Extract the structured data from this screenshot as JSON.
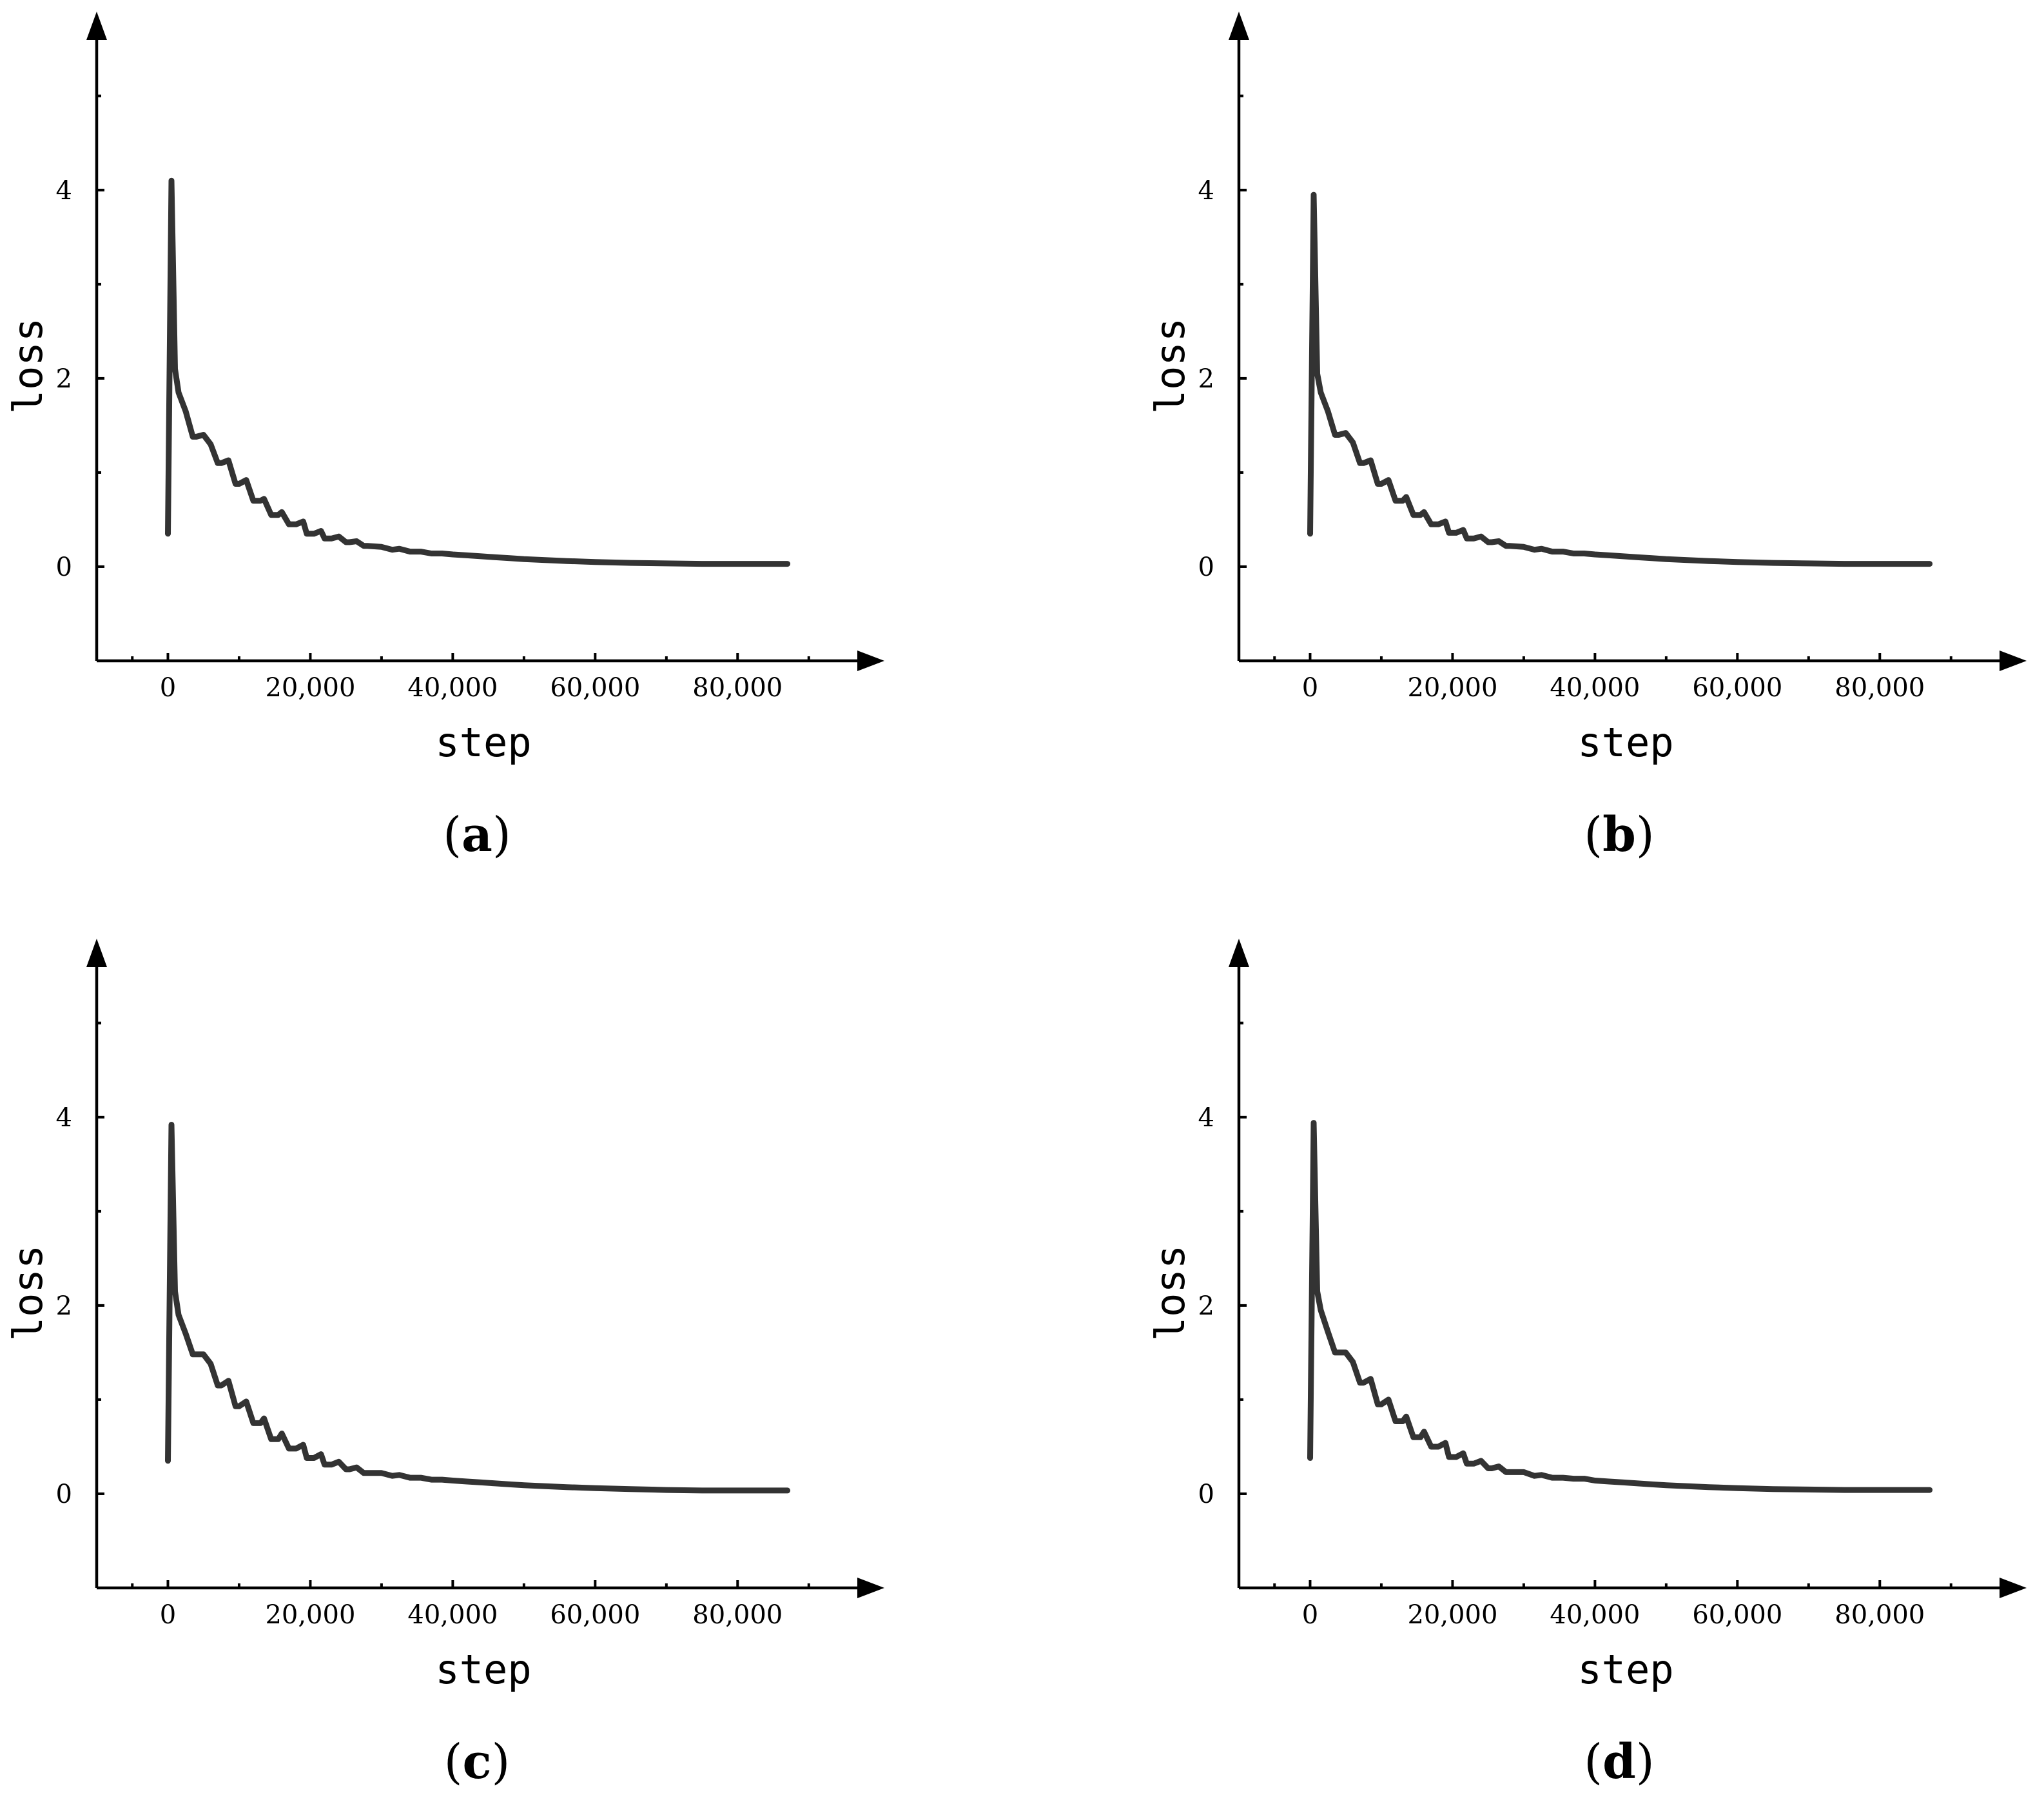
{
  "chart_data": [
    {
      "panel_label": "a",
      "type": "line",
      "xlabel": "step",
      "ylabel": "loss",
      "x_ticks": [
        0,
        20000,
        40000,
        60000,
        80000
      ],
      "x_tick_labels": [
        "0",
        "20,000",
        "40,000",
        "60,000",
        "80,000"
      ],
      "y_ticks": [
        0,
        2,
        4
      ],
      "y_tick_labels": [
        "0",
        "2",
        "4"
      ],
      "xlim": [
        -10000,
        95000
      ],
      "ylim": [
        -1,
        5.3
      ],
      "grid": false,
      "series": [
        {
          "x": [
            0,
            500,
            1000,
            1500,
            2500,
            3500,
            4000,
            5000,
            6000,
            7000,
            7500,
            8500,
            9500,
            10000,
            11000,
            12000,
            13000,
            13500,
            14500,
            15500,
            16000,
            17000,
            18000,
            19000,
            19500,
            20500,
            21500,
            22000,
            23000,
            24000,
            25000,
            25500,
            26500,
            27500,
            28000,
            30000,
            31500,
            32500,
            34000,
            35500,
            37000,
            38500,
            40000,
            42000,
            44000,
            46000,
            48000,
            50000,
            53000,
            56000,
            60000,
            65000,
            70000,
            75000,
            80000,
            87000
          ],
          "y": [
            0.35,
            4.1,
            2.1,
            1.85,
            1.65,
            1.38,
            1.38,
            1.4,
            1.3,
            1.1,
            1.1,
            1.13,
            0.88,
            0.88,
            0.92,
            0.7,
            0.7,
            0.72,
            0.55,
            0.55,
            0.58,
            0.45,
            0.45,
            0.48,
            0.35,
            0.35,
            0.38,
            0.3,
            0.3,
            0.32,
            0.26,
            0.26,
            0.27,
            0.22,
            0.22,
            0.21,
            0.18,
            0.19,
            0.16,
            0.16,
            0.14,
            0.14,
            0.13,
            0.12,
            0.11,
            0.1,
            0.09,
            0.08,
            0.07,
            0.06,
            0.05,
            0.04,
            0.035,
            0.03,
            0.03,
            0.03
          ]
        }
      ]
    },
    {
      "panel_label": "b",
      "type": "line",
      "xlabel": "step",
      "ylabel": "loss",
      "x_ticks": [
        0,
        20000,
        40000,
        60000,
        80000
      ],
      "x_tick_labels": [
        "0",
        "20,000",
        "40,000",
        "60,000",
        "80,000"
      ],
      "y_ticks": [
        0,
        2,
        4
      ],
      "y_tick_labels": [
        "0",
        "2",
        "4"
      ],
      "xlim": [
        -10000,
        95000
      ],
      "ylim": [
        -1,
        5.3
      ],
      "grid": false,
      "series": [
        {
          "x": [
            0,
            500,
            1000,
            1500,
            2500,
            3500,
            4000,
            5000,
            6000,
            7000,
            7500,
            8500,
            9500,
            10000,
            11000,
            12000,
            13000,
            13500,
            14500,
            15500,
            16000,
            17000,
            18000,
            19000,
            19500,
            20500,
            21500,
            22000,
            23000,
            24000,
            25000,
            25500,
            26500,
            27500,
            28000,
            30000,
            31500,
            32500,
            34000,
            35500,
            37000,
            38500,
            40000,
            42000,
            44000,
            46000,
            48000,
            50000,
            53000,
            56000,
            60000,
            65000,
            70000,
            75000,
            80000,
            87000
          ],
          "y": [
            0.35,
            3.95,
            2.05,
            1.85,
            1.65,
            1.4,
            1.4,
            1.42,
            1.32,
            1.1,
            1.1,
            1.13,
            0.88,
            0.88,
            0.92,
            0.7,
            0.7,
            0.74,
            0.55,
            0.55,
            0.58,
            0.45,
            0.45,
            0.48,
            0.36,
            0.36,
            0.39,
            0.3,
            0.3,
            0.32,
            0.26,
            0.26,
            0.27,
            0.22,
            0.22,
            0.21,
            0.18,
            0.19,
            0.16,
            0.16,
            0.14,
            0.14,
            0.13,
            0.12,
            0.11,
            0.1,
            0.09,
            0.08,
            0.07,
            0.06,
            0.05,
            0.04,
            0.035,
            0.03,
            0.03,
            0.03
          ]
        }
      ]
    },
    {
      "panel_label": "c",
      "type": "line",
      "xlabel": "step",
      "ylabel": "loss",
      "x_ticks": [
        0,
        20000,
        40000,
        60000,
        80000
      ],
      "x_tick_labels": [
        "0",
        "20,000",
        "40,000",
        "60,000",
        "80,000"
      ],
      "y_ticks": [
        0,
        2,
        4
      ],
      "y_tick_labels": [
        "0",
        "2",
        "4"
      ],
      "xlim": [
        -10000,
        95000
      ],
      "ylim": [
        -1,
        5.3
      ],
      "grid": false,
      "series": [
        {
          "x": [
            0,
            500,
            1000,
            1500,
            2500,
            3500,
            4000,
            5000,
            6000,
            7000,
            7500,
            8500,
            9500,
            10000,
            11000,
            12000,
            13000,
            13500,
            14500,
            15500,
            16000,
            17000,
            18000,
            19000,
            19500,
            20500,
            21500,
            22000,
            23000,
            24000,
            25000,
            25500,
            26500,
            27500,
            28000,
            30000,
            31500,
            32500,
            34000,
            35500,
            37000,
            38500,
            40000,
            42000,
            44000,
            46000,
            48000,
            50000,
            53000,
            56000,
            60000,
            65000,
            70000,
            75000,
            80000,
            87000
          ],
          "y": [
            0.35,
            3.92,
            2.15,
            1.9,
            1.7,
            1.48,
            1.48,
            1.48,
            1.38,
            1.15,
            1.15,
            1.2,
            0.93,
            0.93,
            0.98,
            0.75,
            0.75,
            0.8,
            0.58,
            0.58,
            0.64,
            0.48,
            0.48,
            0.52,
            0.38,
            0.38,
            0.42,
            0.31,
            0.31,
            0.34,
            0.26,
            0.26,
            0.28,
            0.22,
            0.22,
            0.22,
            0.19,
            0.2,
            0.17,
            0.17,
            0.15,
            0.15,
            0.14,
            0.13,
            0.12,
            0.11,
            0.1,
            0.09,
            0.08,
            0.07,
            0.06,
            0.05,
            0.04,
            0.035,
            0.035,
            0.035
          ]
        }
      ]
    },
    {
      "panel_label": "d",
      "type": "line",
      "xlabel": "step",
      "ylabel": "loss",
      "x_ticks": [
        0,
        20000,
        40000,
        60000,
        80000
      ],
      "x_tick_labels": [
        "0",
        "20,000",
        "40,000",
        "60,000",
        "80,000"
      ],
      "y_ticks": [
        0,
        2,
        4
      ],
      "y_tick_labels": [
        "0",
        "2",
        "4"
      ],
      "xlim": [
        -10000,
        95000
      ],
      "ylim": [
        -1,
        5.3
      ],
      "grid": false,
      "series": [
        {
          "x": [
            0,
            500,
            1000,
            1500,
            2500,
            3500,
            4000,
            5000,
            6000,
            7000,
            7500,
            8500,
            9500,
            10000,
            11000,
            12000,
            13000,
            13500,
            14500,
            15500,
            16000,
            17000,
            18000,
            19000,
            19500,
            20500,
            21500,
            22000,
            23000,
            24000,
            25000,
            25500,
            26500,
            27500,
            28000,
            30000,
            31500,
            32500,
            34000,
            35500,
            37000,
            38500,
            40000,
            42000,
            44000,
            46000,
            48000,
            50000,
            53000,
            56000,
            60000,
            65000,
            70000,
            75000,
            80000,
            87000
          ],
          "y": [
            0.38,
            3.94,
            2.15,
            1.95,
            1.72,
            1.5,
            1.5,
            1.5,
            1.4,
            1.18,
            1.18,
            1.22,
            0.95,
            0.95,
            1.0,
            0.77,
            0.77,
            0.82,
            0.6,
            0.6,
            0.66,
            0.5,
            0.5,
            0.54,
            0.39,
            0.39,
            0.43,
            0.32,
            0.32,
            0.35,
            0.27,
            0.27,
            0.29,
            0.23,
            0.23,
            0.23,
            0.19,
            0.2,
            0.17,
            0.17,
            0.16,
            0.16,
            0.14,
            0.13,
            0.12,
            0.11,
            0.1,
            0.09,
            0.08,
            0.07,
            0.06,
            0.05,
            0.045,
            0.04,
            0.04,
            0.04
          ]
        }
      ]
    }
  ]
}
